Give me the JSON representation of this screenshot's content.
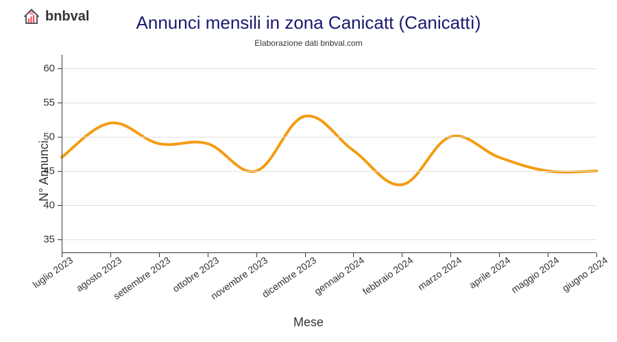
{
  "logo": {
    "text": "bnbval"
  },
  "chart": {
    "type": "line",
    "title": "Annunci mensili in zona Canicatt (Canicattì)",
    "subtitle": "Elaborazione dati bnbval.com",
    "xlabel": "Mese",
    "ylabel": "N° Annunci",
    "title_fontsize": 26,
    "title_color": "#191970",
    "subtitle_fontsize": 12,
    "label_fontsize": 18,
    "tick_fontsize": 15,
    "background_color": "#ffffff",
    "grid_color": "#e0e0e0",
    "axis_color": "#333333",
    "line_color": "#f39c12",
    "line_width": 4,
    "ylim": [
      33,
      62
    ],
    "yticks": [
      35,
      40,
      45,
      50,
      55,
      60
    ],
    "categories": [
      "luglio 2023",
      "agosto 2023",
      "settembre 2023",
      "ottobre 2023",
      "novembre 2023",
      "dicembre 2023",
      "gennaio 2024",
      "febbraio 2024",
      "marzo 2024",
      "aprile 2024",
      "maggio 2024",
      "giugno 2024"
    ],
    "values": [
      47,
      52,
      49,
      49,
      45,
      53,
      48,
      43,
      50,
      47,
      45,
      45
    ]
  }
}
